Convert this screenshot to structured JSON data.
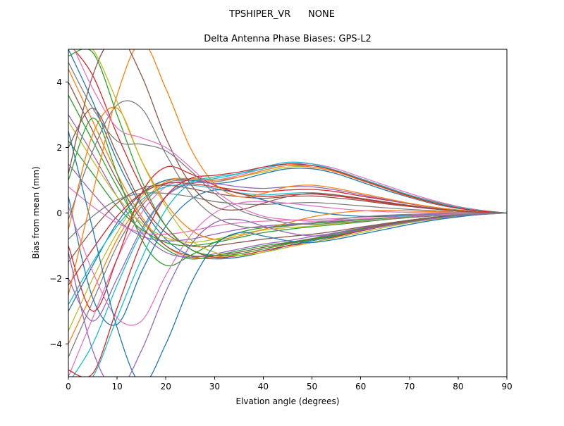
{
  "figure": {
    "title": "TPSHIPER_VR      NONE",
    "subtitle": "Delta Antenna Phase Biases: GPS-L2"
  },
  "chart_data": {
    "type": "line",
    "suptitle": "TPSHIPER_VR      NONE",
    "title": "Delta Antenna Phase Biases: GPS-L2",
    "xlabel": "Elvation angle (degrees)",
    "ylabel": "Bias from mean (mm)",
    "xlim": [
      0,
      90
    ],
    "ylim": [
      -5,
      5
    ],
    "xticks": [
      0,
      10,
      20,
      30,
      40,
      50,
      60,
      70,
      80,
      90
    ],
    "yticks": [
      -4,
      -2,
      0,
      2,
      4
    ],
    "grid": false,
    "legend_position": "none",
    "palette": [
      "#1f77b4",
      "#ff7f0e",
      "#2ca02c",
      "#d62728",
      "#9467bd",
      "#8c564b",
      "#e377c2",
      "#7f7f7f",
      "#bcbd22",
      "#17becf"
    ],
    "x": [
      0,
      5,
      10,
      15,
      20,
      25,
      30,
      35,
      40,
      45,
      50,
      55,
      60,
      65,
      70,
      75,
      80,
      85,
      90
    ],
    "series": [
      [
        5.0,
        3.4,
        1.6,
        0.2,
        -0.8,
        -1.3,
        -1.4,
        -1.35,
        -1.2,
        -1.0,
        -0.85,
        -0.7,
        -0.55,
        -0.4,
        -0.28,
        -0.18,
        -0.1,
        -0.04,
        0
      ],
      [
        4.4,
        2.8,
        1.2,
        -0.1,
        -1.0,
        -1.35,
        -1.35,
        -1.25,
        -1.1,
        -0.95,
        -0.8,
        -0.65,
        -0.5,
        -0.38,
        -0.26,
        -0.16,
        -0.09,
        -0.03,
        0
      ],
      [
        3.6,
        2.2,
        0.8,
        -0.4,
        -1.1,
        -1.4,
        -1.3,
        -1.15,
        -1.0,
        -0.9,
        -0.78,
        -0.62,
        -0.48,
        -0.35,
        -0.24,
        -0.15,
        -0.08,
        -0.03,
        0
      ],
      [
        5.2,
        4.2,
        2.4,
        0.8,
        -0.4,
        -1.1,
        -1.35,
        -1.3,
        -1.15,
        -1.0,
        -0.9,
        -0.72,
        -0.55,
        -0.4,
        -0.27,
        -0.17,
        -0.09,
        -0.04,
        0
      ],
      [
        3.0,
        1.8,
        0.5,
        -0.6,
        -1.2,
        -1.35,
        -1.25,
        -1.1,
        -0.95,
        -0.85,
        -0.72,
        -0.6,
        -0.46,
        -0.33,
        -0.22,
        -0.13,
        -0.07,
        -0.02,
        0
      ],
      [
        4.0,
        2.5,
        1.0,
        -0.2,
        -1.0,
        -1.3,
        -1.3,
        -1.2,
        -1.05,
        -0.92,
        -0.8,
        -0.66,
        -0.5,
        -0.36,
        -0.25,
        -0.15,
        -0.08,
        -0.03,
        0
      ],
      [
        -5.0,
        -3.2,
        -1.4,
        0.0,
        0.8,
        1.0,
        1.0,
        1.15,
        1.35,
        1.5,
        1.5,
        1.35,
        1.1,
        0.85,
        0.6,
        0.38,
        0.2,
        0.08,
        0
      ],
      [
        -4.4,
        -2.7,
        -1.0,
        0.2,
        0.9,
        1.0,
        0.95,
        1.1,
        1.3,
        1.45,
        1.45,
        1.3,
        1.05,
        0.8,
        0.55,
        0.35,
        0.18,
        0.07,
        0
      ],
      [
        -3.6,
        -2.0,
        -0.6,
        0.5,
        1.0,
        1.05,
        1.0,
        1.1,
        1.25,
        1.4,
        1.4,
        1.25,
        1.0,
        0.75,
        0.52,
        0.32,
        0.16,
        0.06,
        0
      ],
      [
        -5.2,
        -4.0,
        -2.2,
        -0.6,
        0.5,
        0.95,
        1.05,
        1.2,
        1.4,
        1.55,
        1.5,
        1.3,
        1.05,
        0.78,
        0.52,
        0.3,
        0.15,
        0.05,
        0
      ],
      [
        -3.0,
        -1.6,
        -0.3,
        0.6,
        1.0,
        1.0,
        0.9,
        1.0,
        1.2,
        1.35,
        1.35,
        1.2,
        0.95,
        0.7,
        0.48,
        0.28,
        0.14,
        0.05,
        0
      ],
      [
        -4.0,
        -2.4,
        -0.8,
        0.3,
        0.95,
        1.05,
        1.0,
        1.1,
        1.3,
        1.45,
        1.4,
        1.25,
        1.0,
        0.75,
        0.5,
        0.3,
        0.15,
        0.05,
        0
      ],
      [
        2.2,
        1.2,
        0.2,
        -0.5,
        -0.9,
        -1.0,
        -0.9,
        -0.75,
        -0.6,
        -0.5,
        -0.42,
        -0.35,
        -0.28,
        -0.2,
        -0.14,
        -0.09,
        -0.05,
        -0.02,
        0
      ],
      [
        -2.2,
        -1.1,
        -0.1,
        0.6,
        0.9,
        0.9,
        0.8,
        0.7,
        0.65,
        0.7,
        0.72,
        0.65,
        0.52,
        0.4,
        0.28,
        0.17,
        0.09,
        0.03,
        0
      ],
      [
        1.5,
        0.6,
        -0.2,
        -0.7,
        -0.85,
        -0.8,
        -0.65,
        -0.5,
        -0.4,
        -0.35,
        -0.3,
        -0.25,
        -0.2,
        -0.15,
        -0.1,
        -0.06,
        -0.03,
        -0.01,
        0
      ],
      [
        -1.5,
        -0.5,
        0.3,
        0.75,
        0.85,
        0.75,
        0.6,
        0.5,
        0.45,
        0.5,
        0.52,
        0.46,
        0.38,
        0.28,
        0.2,
        0.12,
        0.06,
        0.02,
        0
      ],
      [
        0.8,
        0.2,
        -0.3,
        -0.6,
        -0.65,
        -0.55,
        -0.4,
        -0.3,
        -0.25,
        -0.22,
        -0.2,
        -0.17,
        -0.13,
        -0.1,
        -0.07,
        -0.04,
        -0.02,
        -0.01,
        0
      ],
      [
        -0.8,
        -0.1,
        0.4,
        0.6,
        0.6,
        0.5,
        0.35,
        0.28,
        0.26,
        0.3,
        0.32,
        0.28,
        0.22,
        0.16,
        0.11,
        0.07,
        0.03,
        0.01,
        0
      ],
      [
        2.8,
        1.6,
        0.5,
        -0.3,
        -0.75,
        -0.9,
        -0.8,
        -0.65,
        -0.52,
        -0.45,
        -0.4,
        -0.33,
        -0.26,
        -0.19,
        -0.13,
        -0.08,
        -0.04,
        -0.01,
        0
      ],
      [
        -2.8,
        -1.5,
        -0.4,
        0.4,
        0.8,
        0.85,
        0.75,
        0.62,
        0.55,
        0.6,
        0.62,
        0.55,
        0.44,
        0.33,
        0.23,
        0.14,
        0.07,
        0.02,
        0
      ],
      [
        0.5,
        -2.6,
        -3.4,
        -1.8,
        -0.4,
        0.4,
        0.7,
        0.6,
        0.4,
        0.2,
        0.05,
        -0.05,
        -0.1,
        -0.1,
        -0.08,
        -0.05,
        -0.03,
        -0.01,
        0
      ],
      [
        -0.5,
        2.4,
        3.2,
        1.6,
        0.3,
        -0.5,
        -0.8,
        -0.7,
        -0.5,
        -0.3,
        -0.12,
        0.0,
        0.06,
        0.08,
        0.06,
        0.04,
        0.02,
        0.01,
        0
      ],
      [
        1.0,
        2.9,
        1.2,
        -0.8,
        -1.6,
        -1.3,
        -0.9,
        -0.6,
        -0.45,
        -0.38,
        -0.32,
        -0.27,
        -0.21,
        -0.16,
        -0.11,
        -0.07,
        -0.03,
        -0.01,
        0
      ],
      [
        -1.0,
        -3.0,
        -1.4,
        0.6,
        1.4,
        1.2,
        0.85,
        0.6,
        0.5,
        0.55,
        0.58,
        0.52,
        0.42,
        0.31,
        0.21,
        0.13,
        0.06,
        0.02,
        0
      ],
      [
        -2.0,
        -3.3,
        -2.0,
        -0.5,
        0.5,
        0.9,
        0.9,
        0.8,
        0.75,
        0.8,
        0.8,
        0.7,
        0.56,
        0.42,
        0.29,
        0.17,
        0.09,
        0.03,
        0
      ],
      [
        2.0,
        3.2,
        1.8,
        0.3,
        -0.6,
        -1.0,
        -1.0,
        -0.9,
        -0.8,
        -0.72,
        -0.65,
        -0.55,
        -0.43,
        -0.32,
        -0.22,
        -0.13,
        -0.07,
        -0.02,
        0
      ],
      [
        0.2,
        -1.8,
        -3.2,
        -3.3,
        -1.9,
        -0.7,
        0.0,
        0.3,
        0.35,
        0.3,
        0.22,
        0.14,
        0.08,
        0.04,
        0.02,
        0.01,
        0.0,
        0.0,
        0
      ],
      [
        -0.2,
        1.9,
        3.3,
        3.2,
        1.8,
        0.6,
        -0.1,
        -0.4,
        -0.45,
        -0.4,
        -0.3,
        -0.2,
        -0.12,
        -0.07,
        -0.04,
        -0.02,
        -0.01,
        0.0,
        0
      ],
      [
        5.5,
        5.0,
        3.4,
        1.6,
        0.2,
        -0.8,
        -1.2,
        -1.3,
        -1.2,
        -1.05,
        -0.9,
        -0.75,
        -0.6,
        -0.44,
        -0.3,
        -0.19,
        -0.1,
        -0.04,
        0
      ],
      [
        -5.5,
        -5.0,
        -3.2,
        -1.4,
        0.1,
        0.9,
        1.1,
        1.2,
        1.35,
        1.5,
        1.45,
        1.3,
        1.05,
        0.8,
        0.55,
        0.33,
        0.17,
        0.06,
        0
      ],
      [
        2.5,
        -0.5,
        -3.5,
        -5.2,
        -4.0,
        -2.2,
        -1.0,
        -0.6,
        -0.7,
        -0.85,
        -0.9,
        -0.8,
        -0.65,
        -0.5,
        -0.35,
        -0.22,
        -0.12,
        -0.04,
        0
      ],
      [
        -2.5,
        0.6,
        3.6,
        5.2,
        3.8,
        2.0,
        0.9,
        0.5,
        0.6,
        0.8,
        0.85,
        0.75,
        0.6,
        0.45,
        0.3,
        0.18,
        0.09,
        0.03,
        0
      ],
      [
        4.8,
        4.9,
        3.0,
        1.0,
        -0.4,
        -1.1,
        -1.3,
        -1.25,
        -1.1,
        -0.95,
        -0.82,
        -0.68,
        -0.53,
        -0.39,
        -0.27,
        -0.16,
        -0.08,
        -0.03,
        0
      ],
      [
        -4.8,
        -4.9,
        -2.9,
        -0.9,
        0.5,
        1.05,
        1.15,
        1.25,
        1.4,
        1.5,
        1.45,
        1.28,
        1.02,
        0.77,
        0.52,
        0.31,
        0.15,
        0.05,
        0
      ],
      [
        -1.2,
        -4.2,
        -5.4,
        -4.2,
        -2.4,
        -1.0,
        -0.3,
        -0.2,
        -0.4,
        -0.6,
        -0.7,
        -0.65,
        -0.52,
        -0.4,
        -0.28,
        -0.17,
        -0.09,
        -0.03,
        0
      ],
      [
        1.2,
        4.2,
        5.4,
        4.2,
        2.3,
        0.9,
        0.2,
        0.1,
        0.3,
        0.5,
        0.6,
        0.55,
        0.45,
        0.34,
        0.23,
        0.14,
        0.07,
        0.02,
        0
      ],
      [
        5.4,
        3.8,
        2.6,
        2.3,
        2.0,
        1.4,
        0.7,
        0.2,
        -0.1,
        -0.2,
        -0.25,
        -0.22,
        -0.18,
        -0.14,
        -0.1,
        -0.06,
        -0.03,
        -0.01,
        0
      ],
      [
        4.6,
        3.2,
        2.2,
        2.1,
        1.9,
        1.3,
        0.6,
        0.1,
        -0.15,
        -0.3,
        -0.35,
        -0.3,
        -0.25,
        -0.2,
        -0.14,
        -0.09,
        -0.05,
        -0.02,
        0
      ]
    ]
  }
}
